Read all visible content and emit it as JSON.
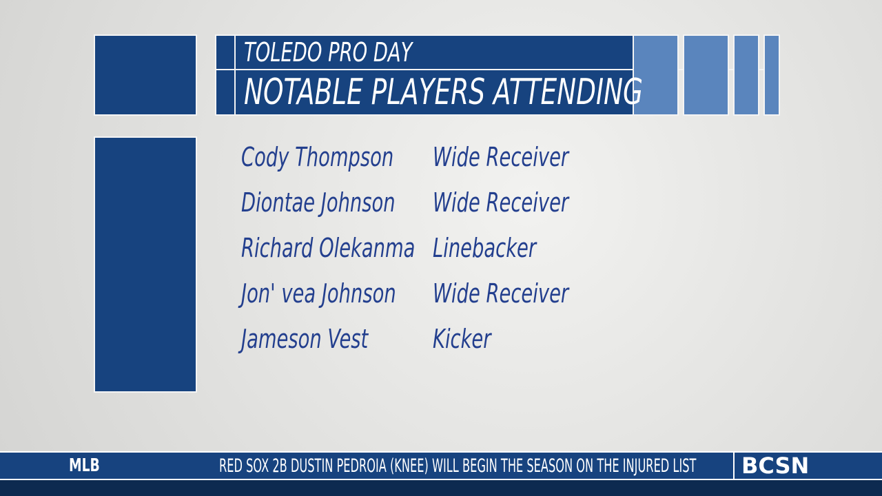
{
  "header": {
    "title": "TOLEDO PRO DAY",
    "subtitle": "NOTABLE PLAYERS ATTENDING"
  },
  "players": [
    {
      "name": "Cody Thompson",
      "position": "Wide Receiver"
    },
    {
      "name": "Diontae Johnson",
      "position": "Wide Receiver"
    },
    {
      "name": "Richard Olekanma",
      "position": "Linebacker"
    },
    {
      "name": "Jon' vea Johnson",
      "position": "Wide Receiver"
    },
    {
      "name": "Jameson Vest",
      "position": "Kicker"
    }
  ],
  "ticker": {
    "league": "MLB",
    "headline": "RED SOX 2B DUSTIN PEDROIA (KNEE) WILL BEGIN THE SEASON ON THE INJURED LIST",
    "network": "BCSN"
  }
}
